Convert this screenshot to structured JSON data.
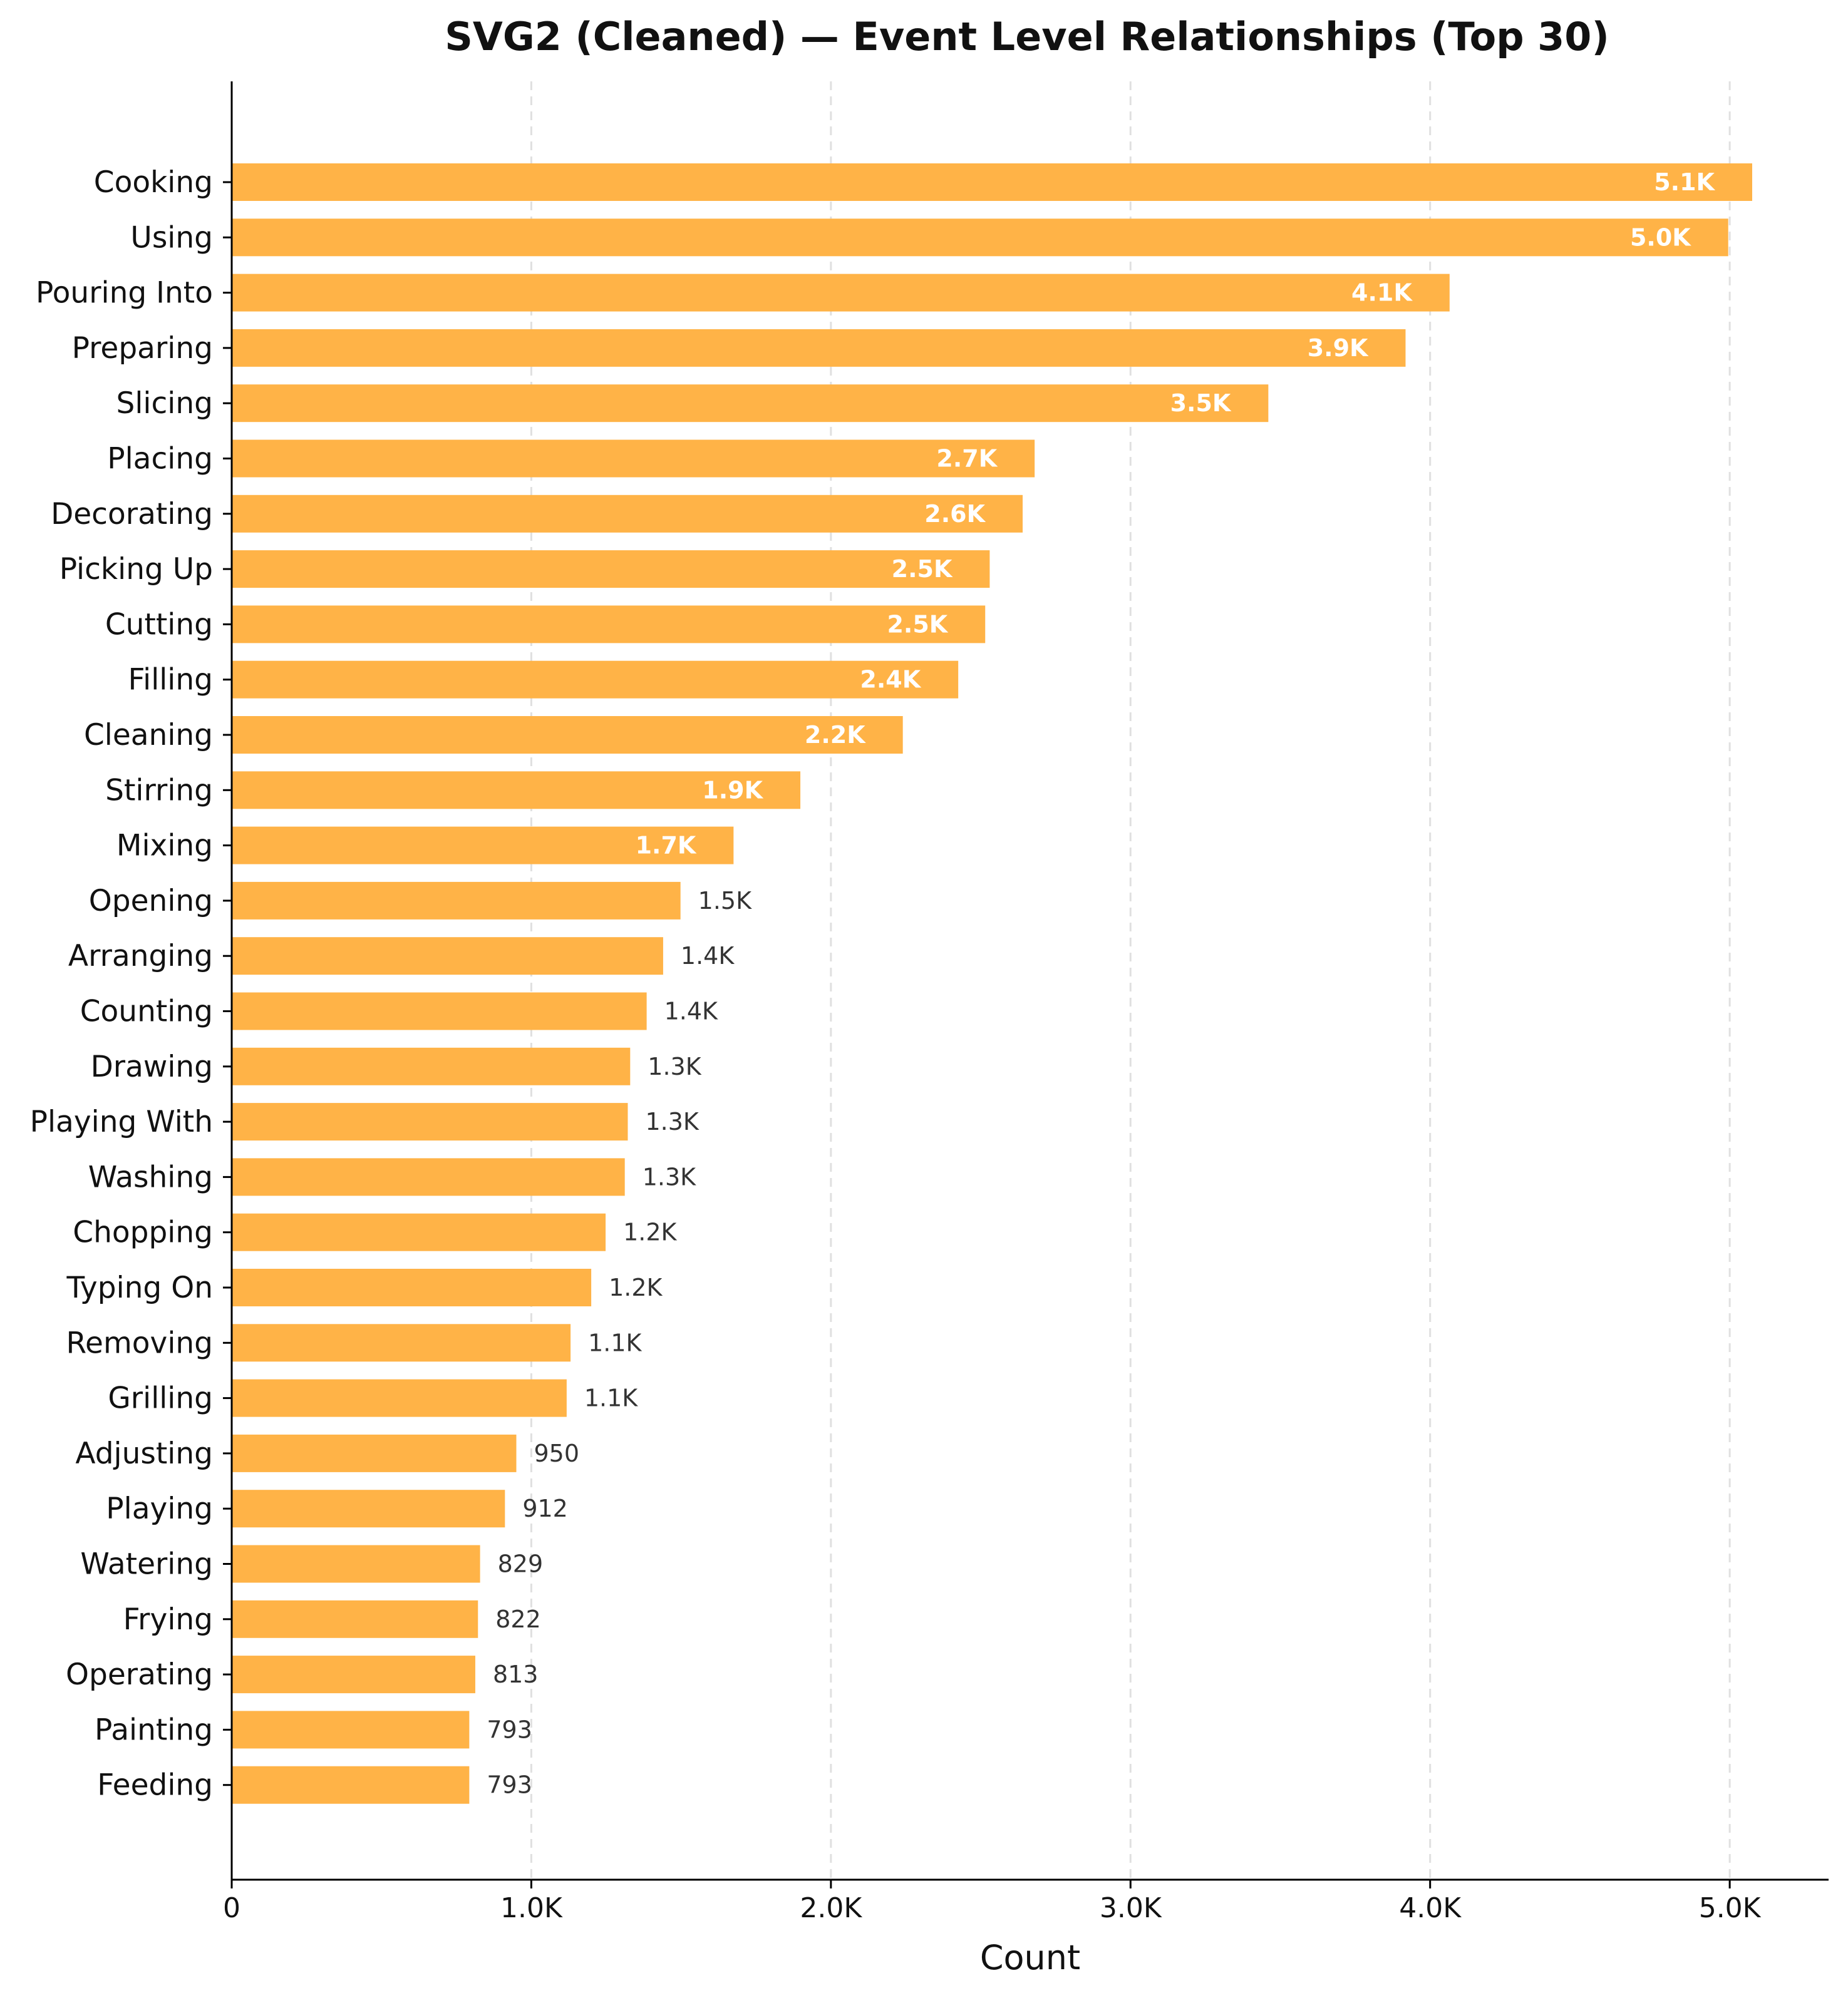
{
  "chart_data": {
    "type": "bar",
    "orientation": "horizontal",
    "title": "SVG2 (Cleaned) — Event Level Relationships (Top 30)",
    "xlabel": "Count",
    "ylabel": "",
    "xlim": [
      0,
      5330
    ],
    "grid": "x-dashed",
    "bar_color": "#FFB347",
    "x_ticks": [
      0,
      1000,
      2000,
      3000,
      4000,
      5000
    ],
    "x_tick_labels": [
      "0",
      "1.0K",
      "2.0K",
      "3.0K",
      "4.0K",
      "5.0K"
    ],
    "categories": [
      "Cooking",
      "Using",
      "Pouring Into",
      "Preparing",
      "Slicing",
      "Placing",
      "Decorating",
      "Picking Up",
      "Cutting",
      "Filling",
      "Cleaning",
      "Stirring",
      "Mixing",
      "Opening",
      "Arranging",
      "Counting",
      "Drawing",
      "Playing With",
      "Washing",
      "Chopping",
      "Typing On",
      "Removing",
      "Grilling",
      "Adjusting",
      "Playing",
      "Watering",
      "Frying",
      "Operating",
      "Painting",
      "Feeding"
    ],
    "values": [
      5075,
      4995,
      4065,
      3918,
      3460,
      2680,
      2640,
      2530,
      2515,
      2425,
      2240,
      1898,
      1675,
      1498,
      1440,
      1385,
      1330,
      1322,
      1312,
      1248,
      1200,
      1131,
      1118,
      950,
      912,
      829,
      822,
      813,
      793,
      793
    ],
    "value_labels": [
      "5.1K",
      "5.0K",
      "4.1K",
      "3.9K",
      "3.5K",
      "2.7K",
      "2.6K",
      "2.5K",
      "2.5K",
      "2.4K",
      "2.2K",
      "1.9K",
      "1.7K",
      "1.5K",
      "1.4K",
      "1.4K",
      "1.3K",
      "1.3K",
      "1.3K",
      "1.2K",
      "1.2K",
      "1.1K",
      "1.1K",
      "950",
      "912",
      "829",
      "822",
      "813",
      "793",
      "793"
    ],
    "label_inside_count": 13
  }
}
